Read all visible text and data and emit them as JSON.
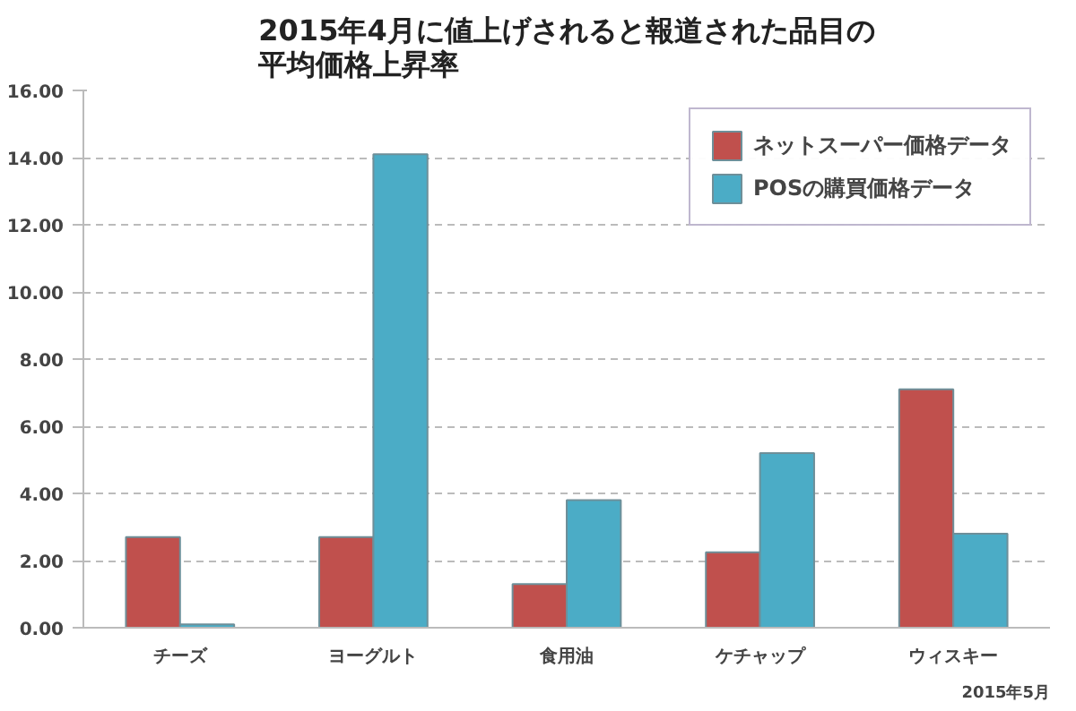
{
  "chart_data": {
    "type": "bar",
    "title": "2015年4月に値上げされると報道された品目の平均価格上昇率",
    "categories": [
      "チーズ",
      "ヨーグルト",
      "食用油",
      "ケチャップ",
      "ウィスキー"
    ],
    "series": [
      {
        "name": "ネットスーパー価格データ",
        "color": "#c0504d",
        "values": [
          2.7,
          2.7,
          1.3,
          2.25,
          7.1
        ]
      },
      {
        "name": "POSの購買価格データ",
        "color": "#4bacc6",
        "values": [
          0.1,
          14.1,
          3.8,
          5.2,
          2.8
        ]
      }
    ],
    "ylim": [
      0,
      16
    ],
    "yticks": [
      {
        "value": 0,
        "label": "0.00"
      },
      {
        "value": 2,
        "label": "2.00"
      },
      {
        "value": 4,
        "label": "4.00"
      },
      {
        "value": 6,
        "label": "6.00"
      },
      {
        "value": 8,
        "label": "8.00"
      },
      {
        "value": 10,
        "label": "10.00"
      },
      {
        "value": 12,
        "label": "12.00"
      },
      {
        "value": 14,
        "label": "14.00"
      },
      {
        "value": 16,
        "label": "16.00"
      }
    ],
    "grid": "y",
    "legend": "top right",
    "annotations": [
      "2015年5月"
    ]
  }
}
